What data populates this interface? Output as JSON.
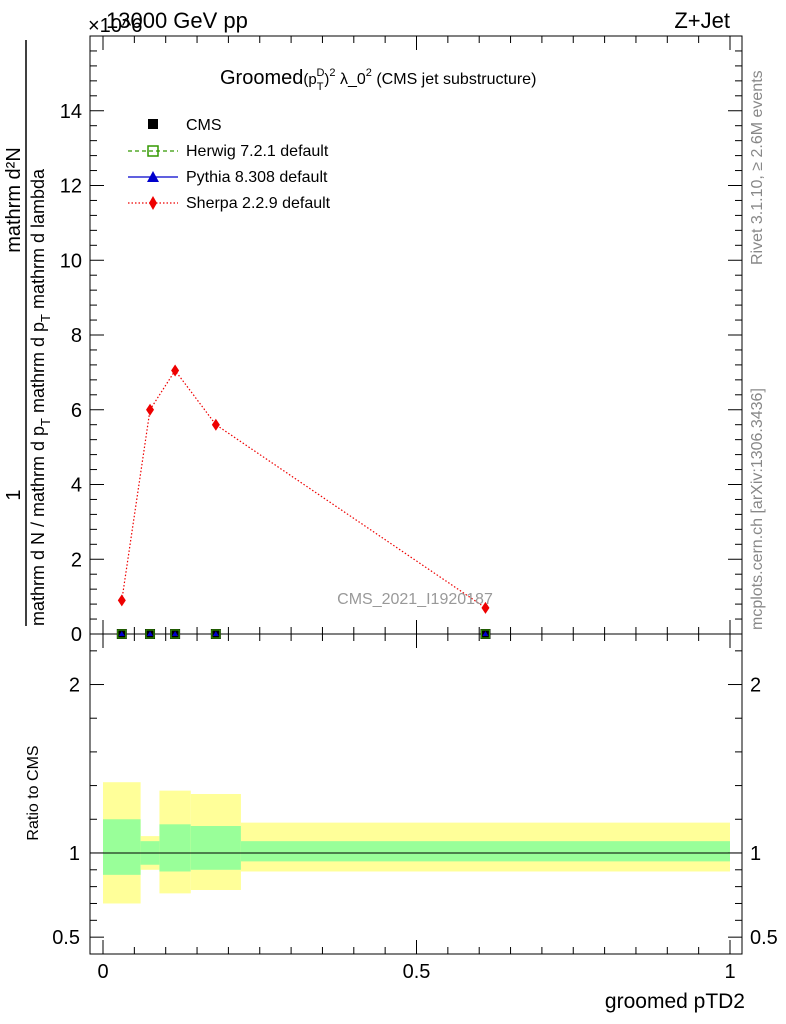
{
  "header": {
    "energy": "13000 GeV pp",
    "process": "Z+Jet",
    "exponent": "×10^6"
  },
  "side_text": {
    "rivet": "Rivet 3.1.10, ≥ 2.6M events",
    "mcplots": "mcplots.cern.ch [arXiv:1306.3436]"
  },
  "watermark": "CMS_2021_I1920187",
  "colors": {
    "cms": "#000000",
    "herwig": "#339900",
    "pythia": "#0000cc",
    "sherpa": "#ee0000",
    "band_outer": "#ffff99",
    "band_inner": "#99ff99"
  },
  "chart_data": [
    {
      "type": "line",
      "title_parts": {
        "pre": "Groomed",
        "p": "(p",
        "sub": "T",
        "sup": "D",
        "close": ")",
        "sq": "2",
        "post": " λ_0",
        "sq2": "2",
        "tail": " (CMS jet substructure)"
      },
      "ylabel": {
        "numerator": "mathrm d²N",
        "den_left": "mathrm d N / mathrm d p",
        "den_sub": "T",
        "den_right": " mathrm d p",
        "den_sub2": "T",
        "den_tail": " mathrm d lambda",
        "one": "1"
      },
      "y_scale_note": "×10^6",
      "xlim": [
        0,
        1
      ],
      "ylim": [
        0,
        16
      ],
      "yticks": [
        0,
        2,
        4,
        6,
        8,
        10,
        12,
        14
      ],
      "ytick_labels": [
        "0",
        "2",
        "4",
        "6",
        "8",
        "10",
        "12",
        "14"
      ],
      "legend": [
        {
          "name": "CMS",
          "marker": "square-filled"
        },
        {
          "name": "Herwig 7.2.1 default",
          "marker": "square-open",
          "line": "dashed"
        },
        {
          "name": "Pythia 8.308 default",
          "marker": "triangle",
          "line": "solid"
        },
        {
          "name": "Sherpa 2.2.9 default",
          "marker": "diamond",
          "line": "dotted"
        }
      ],
      "series": [
        {
          "name": "CMS",
          "x": [
            0.03,
            0.075,
            0.115,
            0.18,
            0.61
          ],
          "y": [
            0,
            0,
            0,
            0,
            0
          ]
        },
        {
          "name": "Herwig 7.2.1 default",
          "x": [
            0.03,
            0.075,
            0.115,
            0.18,
            0.61
          ],
          "y": [
            0,
            0,
            0,
            0,
            0
          ]
        },
        {
          "name": "Pythia 8.308 default",
          "x": [
            0.03,
            0.075,
            0.115,
            0.18,
            0.61
          ],
          "y": [
            0,
            0,
            0,
            0,
            0
          ]
        },
        {
          "name": "Sherpa 2.2.9 default",
          "x": [
            0.03,
            0.075,
            0.115,
            0.18,
            0.61
          ],
          "y": [
            0.9,
            6.0,
            7.05,
            5.6,
            0.7
          ]
        }
      ]
    },
    {
      "type": "area",
      "ylabel": "Ratio to CMS",
      "xlabel": "groomed pTD2",
      "xlim": [
        0,
        1
      ],
      "ylim": [
        0.4,
        2.3
      ],
      "yticks": [
        0.5,
        1,
        2
      ],
      "ytick_labels": [
        "0.5",
        "1",
        "2"
      ],
      "xticks": [
        0,
        0.5,
        1
      ],
      "xtick_labels": [
        "0",
        "0.5",
        "1"
      ],
      "bins": [
        {
          "x0": 0.0,
          "x1": 0.06,
          "outer": [
            0.7,
            1.42
          ],
          "inner": [
            0.87,
            1.2
          ]
        },
        {
          "x0": 0.06,
          "x1": 0.09,
          "outer": [
            0.9,
            1.1
          ],
          "inner": [
            0.93,
            1.07
          ]
        },
        {
          "x0": 0.09,
          "x1": 0.14,
          "outer": [
            0.76,
            1.37
          ],
          "inner": [
            0.89,
            1.17
          ]
        },
        {
          "x0": 0.14,
          "x1": 0.22,
          "outer": [
            0.78,
            1.35
          ],
          "inner": [
            0.9,
            1.16
          ]
        },
        {
          "x0": 0.22,
          "x1": 1.0,
          "outer": [
            0.89,
            1.18
          ],
          "inner": [
            0.95,
            1.07
          ]
        }
      ],
      "reference": 1
    }
  ]
}
